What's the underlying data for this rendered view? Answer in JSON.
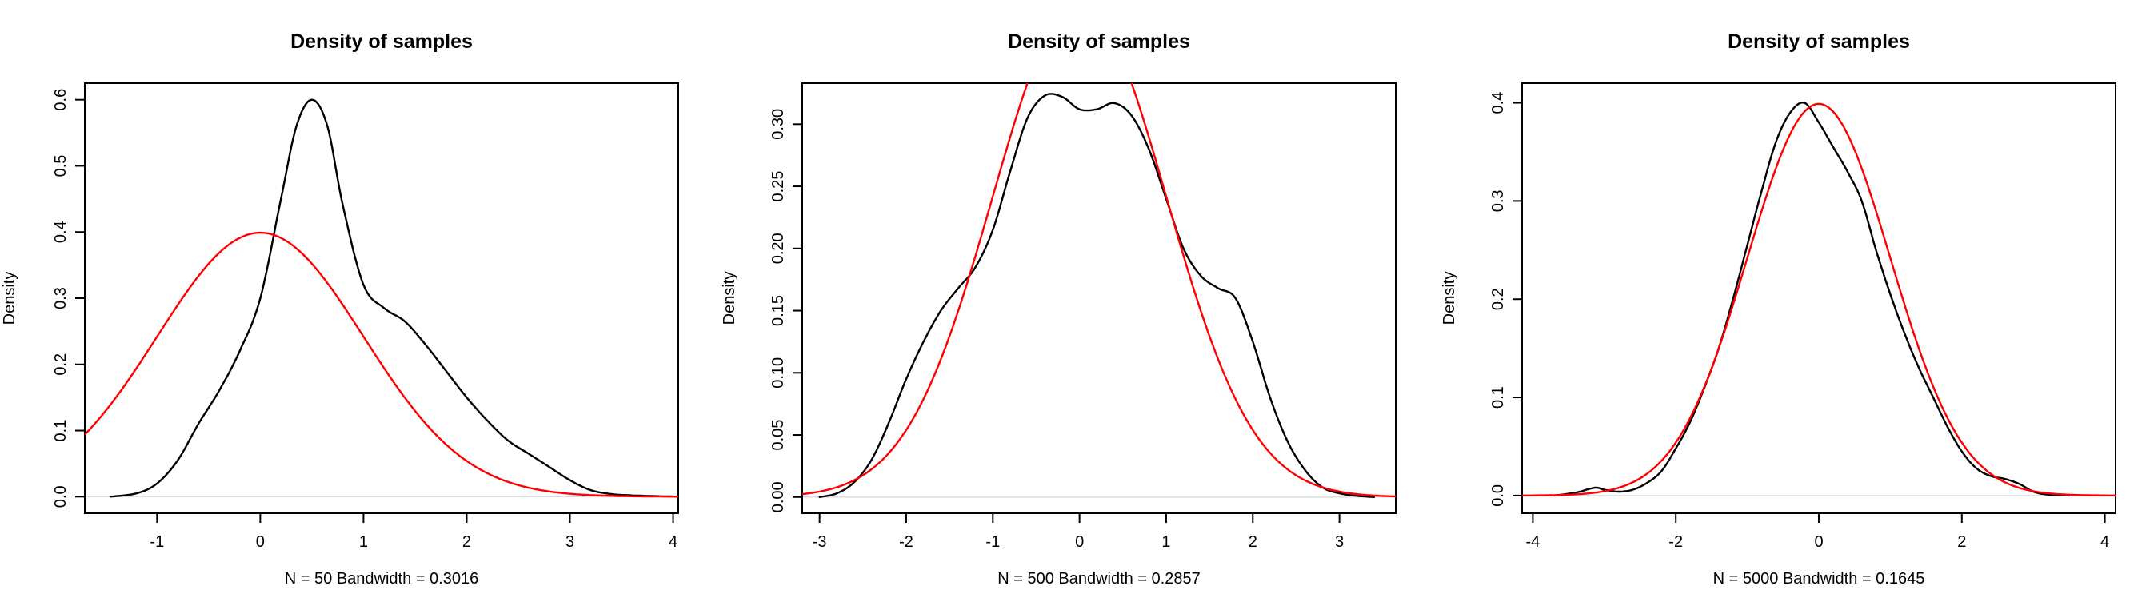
{
  "figure": {
    "background": "#ffffff"
  },
  "chart_data": [
    {
      "type": "line",
      "title": "Density of samples",
      "xlabel": "N = 50   Bandwidth = 0.3016",
      "ylabel": "Density",
      "xlim": [
        -1.7,
        4.05
      ],
      "ylim": [
        -0.025,
        0.625
      ],
      "xticks": [
        -1,
        0,
        1,
        2,
        3,
        4
      ],
      "yticks": [
        0.0,
        0.1,
        0.2,
        0.3,
        0.4,
        0.5,
        0.6
      ],
      "ytick_labels": [
        "0.0",
        "0.1",
        "0.2",
        "0.3",
        "0.4",
        "0.5",
        "0.6"
      ],
      "grid": false,
      "legend": "none",
      "series": [
        {
          "color": "#000000",
          "kind": "kernel density",
          "x": [
            -1.45,
            -1.2,
            -1.0,
            -0.8,
            -0.6,
            -0.4,
            -0.2,
            0.0,
            0.2,
            0.35,
            0.5,
            0.65,
            0.8,
            1.0,
            1.2,
            1.4,
            1.6,
            1.8,
            2.0,
            2.2,
            2.4,
            2.6,
            2.8,
            3.0,
            3.2,
            3.4,
            3.6,
            3.8,
            4.05
          ],
          "y": [
            0.0,
            0.005,
            0.02,
            0.055,
            0.11,
            0.16,
            0.22,
            0.3,
            0.45,
            0.56,
            0.6,
            0.56,
            0.44,
            0.32,
            0.285,
            0.265,
            0.23,
            0.19,
            0.15,
            0.115,
            0.085,
            0.065,
            0.045,
            0.025,
            0.01,
            0.004,
            0.002,
            0.001,
            0.0
          ]
        },
        {
          "color": "#ff0000",
          "kind": "normal pdf",
          "mean": 0,
          "sd": 1,
          "x_range": [
            -1.7,
            4.05
          ]
        }
      ]
    },
    {
      "type": "line",
      "title": "Density of samples",
      "xlabel": "N = 500   Bandwidth = 0.2857",
      "ylabel": "Density",
      "xlim": [
        -3.2,
        3.65
      ],
      "ylim": [
        -0.013,
        0.333
      ],
      "xticks": [
        -3,
        -2,
        -1,
        0,
        1,
        2,
        3
      ],
      "yticks": [
        0.0,
        0.05,
        0.1,
        0.15,
        0.2,
        0.25,
        0.3
      ],
      "ytick_labels": [
        "0.00",
        "0.05",
        "0.10",
        "0.15",
        "0.20",
        "0.25",
        "0.30"
      ],
      "grid": false,
      "legend": "none",
      "series": [
        {
          "color": "#000000",
          "kind": "kernel density",
          "x": [
            -3.0,
            -2.8,
            -2.6,
            -2.4,
            -2.2,
            -2.0,
            -1.8,
            -1.6,
            -1.4,
            -1.2,
            -1.0,
            -0.8,
            -0.6,
            -0.4,
            -0.2,
            0.0,
            0.2,
            0.4,
            0.6,
            0.8,
            1.0,
            1.2,
            1.4,
            1.6,
            1.8,
            2.0,
            2.2,
            2.4,
            2.6,
            2.8,
            3.0,
            3.2,
            3.4
          ],
          "y": [
            0.0,
            0.003,
            0.012,
            0.03,
            0.06,
            0.095,
            0.125,
            0.15,
            0.168,
            0.185,
            0.215,
            0.262,
            0.305,
            0.323,
            0.322,
            0.312,
            0.312,
            0.317,
            0.307,
            0.28,
            0.24,
            0.2,
            0.178,
            0.168,
            0.16,
            0.125,
            0.08,
            0.045,
            0.022,
            0.008,
            0.003,
            0.001,
            0.0
          ]
        },
        {
          "color": "#ff0000",
          "kind": "normal pdf",
          "mean": 0,
          "sd": 1,
          "x_range": [
            -3.2,
            3.65
          ]
        }
      ]
    },
    {
      "type": "line",
      "title": "Density of samples",
      "xlabel": "N = 5000   Bandwidth = 0.1645",
      "ylabel": "Density",
      "xlim": [
        -4.15,
        4.15
      ],
      "ylim": [
        -0.018,
        0.42
      ],
      "xticks": [
        -4,
        -2,
        0,
        2,
        4
      ],
      "yticks": [
        0.0,
        0.1,
        0.2,
        0.3,
        0.4
      ],
      "ytick_labels": [
        "0.0",
        "0.1",
        "0.2",
        "0.3",
        "0.4"
      ],
      "grid": false,
      "legend": "none",
      "series": [
        {
          "color": "#000000",
          "kind": "kernel density",
          "x": [
            -3.7,
            -3.4,
            -3.2,
            -3.1,
            -3.0,
            -2.8,
            -2.6,
            -2.4,
            -2.2,
            -2.0,
            -1.8,
            -1.6,
            -1.4,
            -1.2,
            -1.0,
            -0.8,
            -0.6,
            -0.4,
            -0.2,
            0.0,
            0.2,
            0.4,
            0.6,
            0.8,
            1.0,
            1.2,
            1.4,
            1.6,
            1.8,
            2.0,
            2.2,
            2.4,
            2.6,
            2.8,
            3.0,
            3.2,
            3.5
          ],
          "y": [
            0.0,
            0.003,
            0.007,
            0.008,
            0.006,
            0.004,
            0.006,
            0.013,
            0.025,
            0.048,
            0.075,
            0.11,
            0.15,
            0.2,
            0.255,
            0.31,
            0.36,
            0.39,
            0.4,
            0.38,
            0.355,
            0.33,
            0.3,
            0.25,
            0.205,
            0.165,
            0.13,
            0.1,
            0.07,
            0.045,
            0.028,
            0.02,
            0.017,
            0.012,
            0.004,
            0.001,
            0.0
          ]
        },
        {
          "color": "#ff0000",
          "kind": "normal pdf",
          "mean": 0,
          "sd": 1,
          "x_range": [
            -4.15,
            4.15
          ]
        }
      ]
    }
  ]
}
